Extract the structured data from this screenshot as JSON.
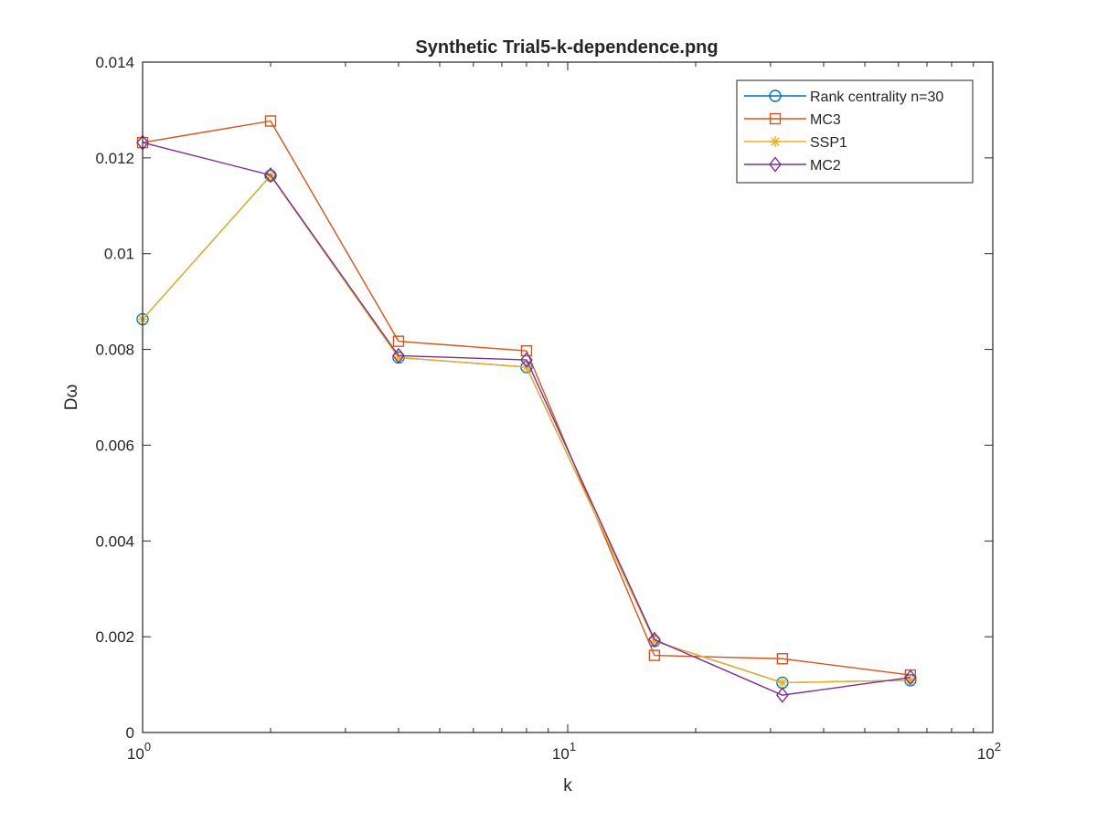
{
  "chart_data": {
    "type": "line",
    "title": "Synthetic Trial5-k-dependence.png",
    "xlabel": "k",
    "ylabel": "Dω",
    "xscale": "log",
    "xlim": [
      1,
      100
    ],
    "ylim": [
      0,
      0.014
    ],
    "grid": false,
    "legend_position": "top-right",
    "x": [
      1,
      2,
      4,
      8,
      16,
      32,
      64
    ],
    "x_tick_labels": [
      {
        "base": "10",
        "exp": "0"
      },
      {
        "base": "10",
        "exp": "1"
      },
      {
        "base": "10",
        "exp": "2"
      }
    ],
    "y_tick_labels": [
      "0",
      "0.002",
      "0.004",
      "0.006",
      "0.008",
      "0.01",
      "0.012",
      "0.014"
    ],
    "series": [
      {
        "name": "Rank centrality n=30",
        "color": "#0072BD",
        "marker": "circle",
        "values": [
          0.00863,
          0.01163,
          0.00783,
          0.00763,
          0.00191,
          0.00104,
          0.00109
        ]
      },
      {
        "name": "MC3",
        "color": "#D95319",
        "marker": "square",
        "values": [
          0.01232,
          0.01277,
          0.00817,
          0.00797,
          0.00161,
          0.00154,
          0.0012
        ]
      },
      {
        "name": "SSP1",
        "color": "#EDB120",
        "marker": "asterisk",
        "values": [
          0.00863,
          0.01163,
          0.00783,
          0.00763,
          0.00191,
          0.00104,
          0.00109
        ]
      },
      {
        "name": "MC2",
        "color": "#7E2F8E",
        "marker": "diamond",
        "values": [
          0.01232,
          0.01164,
          0.00787,
          0.00778,
          0.00194,
          0.00078,
          0.00115
        ]
      }
    ]
  }
}
